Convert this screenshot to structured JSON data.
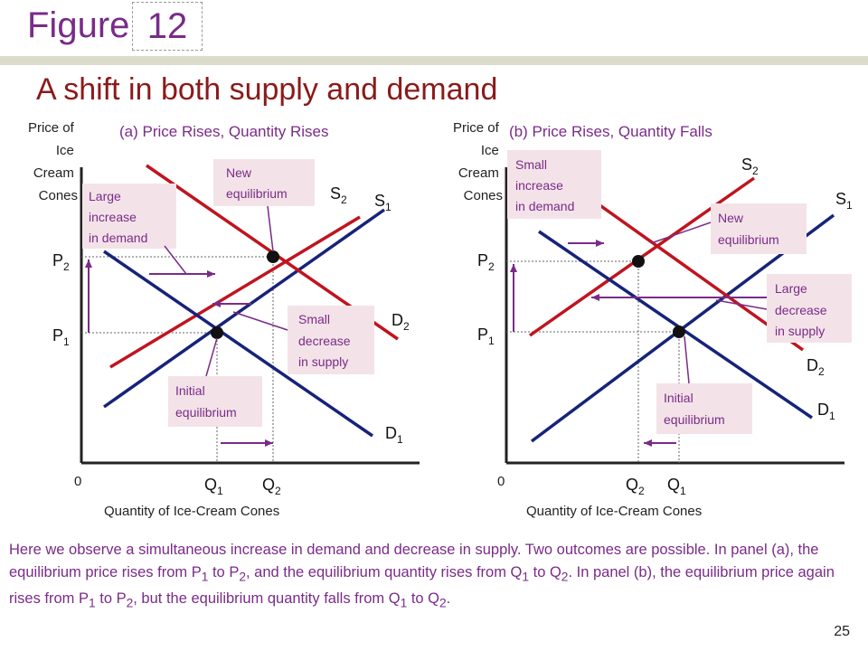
{
  "header": {
    "figure_label": "Figure",
    "figure_number": "12"
  },
  "title": "A shift in both supply and demand",
  "panels": [
    {
      "title": "(a) Price Rises, Quantity Rises",
      "y_axis_label": [
        "Price of",
        "Ice",
        "Cream",
        "Cones"
      ],
      "x_axis_label": "Quantity of Ice-Cream Cones",
      "origin": "0",
      "curves": {
        "S1": "S",
        "S2": "S",
        "D1": "D",
        "D2": "D"
      },
      "price_ticks": [
        {
          "main": "P",
          "sub": "2"
        },
        {
          "main": "P",
          "sub": "1"
        }
      ],
      "qty_ticks": [
        {
          "main": "Q",
          "sub": "1"
        },
        {
          "main": "Q",
          "sub": "2"
        }
      ],
      "annotations": {
        "new_eq": [
          "New",
          "equilibrium"
        ],
        "large_demand": [
          "Large",
          "increase",
          "in demand"
        ],
        "small_supply": [
          "Small",
          "decrease",
          "in supply"
        ],
        "initial_eq": [
          "Initial",
          "equilibrium"
        ]
      },
      "curve_subs": {
        "s1": "1",
        "s2": "2",
        "d1": "1",
        "d2": "2"
      }
    },
    {
      "title": "(b) Price Rises, Quantity Falls",
      "y_axis_label": [
        "Price of",
        "Ice",
        "Cream",
        "Cones"
      ],
      "x_axis_label": "Quantity of Ice-Cream Cones",
      "origin": "0",
      "curves": {
        "S1": "S",
        "S2": "S",
        "D1": "D",
        "D2": "D"
      },
      "price_ticks": [
        {
          "main": "P",
          "sub": "2"
        },
        {
          "main": "P",
          "sub": "1"
        }
      ],
      "qty_ticks": [
        {
          "main": "Q",
          "sub": "2"
        },
        {
          "main": "Q",
          "sub": "1"
        }
      ],
      "annotations": {
        "small_demand": [
          "Small",
          "increase",
          "in demand"
        ],
        "new_eq": [
          "New",
          "equilibrium"
        ],
        "large_supply": [
          "Large",
          "decrease",
          "in supply"
        ],
        "initial_eq": [
          "Initial",
          "equilibrium"
        ]
      },
      "curve_subs": {
        "s1": "1",
        "s2": "2",
        "d1": "1",
        "d2": "2"
      }
    }
  ],
  "caption": {
    "t1": "Here we observe a simultaneous increase in demand and decrease in supply. Two outcomes are possible. In panel (a), the equilibrium price rises from P",
    "s1": "1",
    "t2": " to P",
    "s2": "2",
    "t3": ", and the equilibrium quantity rises from Q",
    "s3": "1",
    "t4": " to Q",
    "s4": "2",
    "t5": ". In panel (b), the equilibrium price again rises from P",
    "s5": "1",
    "t6": " to P",
    "s6": "2",
    "t7": ", but the equilibrium quantity falls from Q",
    "s7": "1",
    "t8": " to Q",
    "s8": "2",
    "t9": "."
  },
  "page_number": "25",
  "colors": {
    "supply": "#c0141e",
    "demand": "#16237a",
    "arrow": "#7a2b88",
    "annotation_bg": "#f3e3e8",
    "title": "#8b1a1a"
  }
}
